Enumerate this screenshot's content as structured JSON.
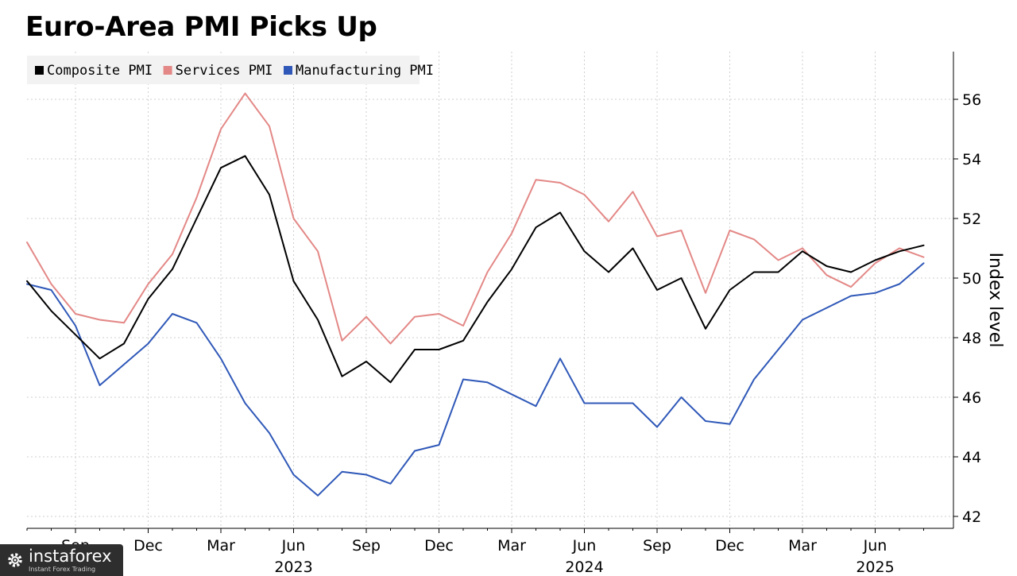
{
  "title": "Euro-Area PMI Picks Up",
  "watermark": {
    "brand": "instaforex",
    "tagline": "Instant Forex Trading"
  },
  "colors": {
    "composite": "#000000",
    "services": "#e38886",
    "manufacturing": "#2f58b8",
    "grid": "#cfcfcf"
  },
  "chart_data": {
    "type": "line",
    "ylabel": "Index level",
    "ylim": [
      41.6,
      57.6
    ],
    "y_ticks": [
      42,
      44,
      46,
      48,
      50,
      52,
      54,
      56
    ],
    "y_tick_labels": [
      "42",
      "44",
      "46",
      "48",
      "50",
      "52",
      "54",
      "56"
    ],
    "grid": true,
    "legend_position": "top-left",
    "x": [
      "2022-07",
      "2022-08",
      "2022-09",
      "2022-10",
      "2022-11",
      "2022-12",
      "2023-01",
      "2023-02",
      "2023-03",
      "2023-04",
      "2023-05",
      "2023-06",
      "2023-07",
      "2023-08",
      "2023-09",
      "2023-10",
      "2023-11",
      "2023-12",
      "2024-01",
      "2024-02",
      "2024-03",
      "2024-04",
      "2024-05",
      "2024-06",
      "2024-07",
      "2024-08",
      "2024-09",
      "2024-10",
      "2024-11",
      "2024-12",
      "2025-01",
      "2025-02",
      "2025-03",
      "2025-04",
      "2025-05",
      "2025-06",
      "2025-07",
      "2025-08"
    ],
    "x_ticks": [
      {
        "x": "2022-09",
        "label": "Sep",
        "year": "2022"
      },
      {
        "x": "2022-12",
        "label": "Dec",
        "year": ""
      },
      {
        "x": "2023-03",
        "label": "Mar",
        "year": ""
      },
      {
        "x": "2023-06",
        "label": "Jun",
        "year": "2023"
      },
      {
        "x": "2023-09",
        "label": "Sep",
        "year": ""
      },
      {
        "x": "2023-12",
        "label": "Dec",
        "year": ""
      },
      {
        "x": "2024-03",
        "label": "Mar",
        "year": ""
      },
      {
        "x": "2024-06",
        "label": "Jun",
        "year": "2024"
      },
      {
        "x": "2024-09",
        "label": "Sep",
        "year": ""
      },
      {
        "x": "2024-12",
        "label": "Dec",
        "year": ""
      },
      {
        "x": "2025-03",
        "label": "Mar",
        "year": ""
      },
      {
        "x": "2025-06",
        "label": "Jun",
        "year": "2025"
      }
    ],
    "series": [
      {
        "name": "Composite PMI",
        "color": "#000000",
        "values": [
          49.9,
          48.9,
          48.1,
          47.3,
          47.8,
          49.3,
          50.3,
          52.0,
          53.7,
          54.1,
          52.8,
          49.9,
          48.6,
          46.7,
          47.2,
          46.5,
          47.6,
          47.6,
          47.9,
          49.2,
          50.3,
          51.7,
          52.2,
          50.9,
          50.2,
          51.0,
          49.6,
          50.0,
          48.3,
          49.6,
          50.2,
          50.2,
          50.9,
          50.4,
          50.2,
          50.6,
          50.9,
          51.1
        ]
      },
      {
        "name": "Services PMI",
        "color": "#e38886",
        "values": [
          51.2,
          49.8,
          48.8,
          48.6,
          48.5,
          49.8,
          50.8,
          52.7,
          55.0,
          56.2,
          55.1,
          52.0,
          50.9,
          47.9,
          48.7,
          47.8,
          48.7,
          48.8,
          48.4,
          50.2,
          51.5,
          53.3,
          53.2,
          52.8,
          51.9,
          52.9,
          51.4,
          51.6,
          49.5,
          51.6,
          51.3,
          50.6,
          51.0,
          50.1,
          49.7,
          50.5,
          51.0,
          50.7
        ]
      },
      {
        "name": "Manufacturing PMI",
        "color": "#2f58b8",
        "values": [
          49.8,
          49.6,
          48.4,
          46.4,
          47.1,
          47.8,
          48.8,
          48.5,
          47.3,
          45.8,
          44.8,
          43.4,
          42.7,
          43.5,
          43.4,
          43.1,
          44.2,
          44.4,
          46.6,
          46.5,
          46.1,
          45.7,
          47.3,
          45.8,
          45.8,
          45.8,
          45.0,
          46.0,
          45.2,
          45.1,
          46.6,
          47.6,
          48.6,
          49.0,
          49.4,
          49.5,
          49.8,
          50.5
        ]
      }
    ]
  }
}
